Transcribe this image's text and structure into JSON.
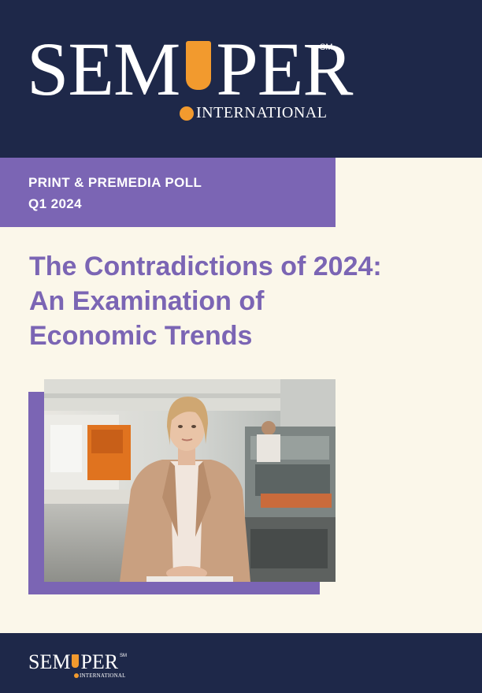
{
  "header": {
    "logo": {
      "word_left": "SEM",
      "word_right": "PER",
      "trademark": "SM",
      "subtitle": "INTERNATIONAL"
    }
  },
  "poll": {
    "line1": "PRINT & PREMEDIA POLL",
    "line2": "Q1 2024"
  },
  "title": {
    "line1": "The Contradictions of 2024:",
    "line2": "An Examination of",
    "line3": "Economic Trends"
  },
  "footer": {
    "logo": {
      "word_left": "SEM",
      "word_right": "PER",
      "trademark": "SM",
      "subtitle": "INTERNATIONAL"
    }
  },
  "colors": {
    "navy": "#1e2849",
    "purple": "#7b65b4",
    "orange": "#f29a2e",
    "cream": "#fbf7ea"
  },
  "icons": {
    "brand_mark": "exclamation-logo-icon"
  }
}
